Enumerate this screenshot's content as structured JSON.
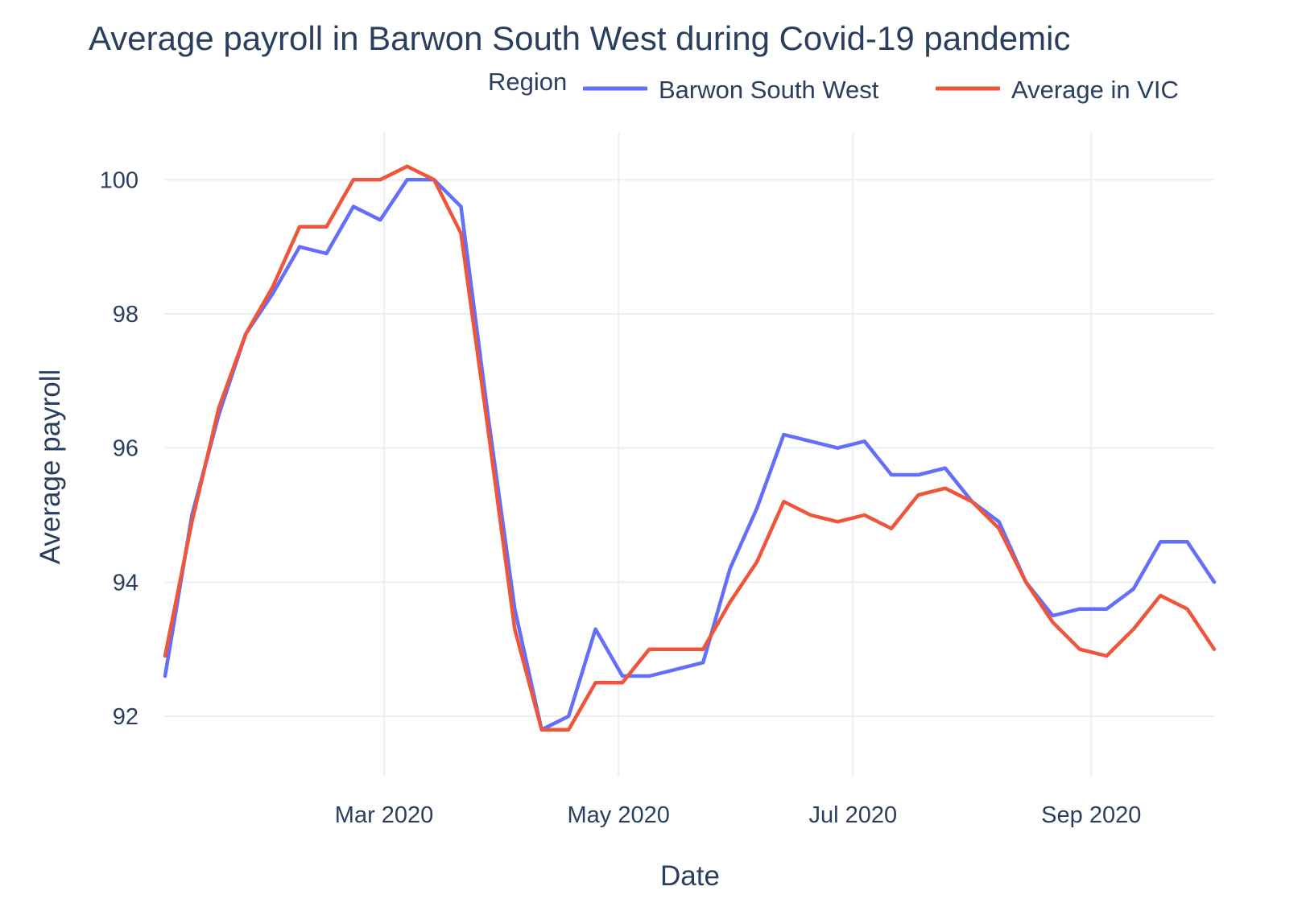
{
  "chart_data": {
    "type": "line",
    "title": "Average payroll in Barwon South West during Covid-19 pandemic",
    "xlabel": "Date",
    "ylabel": "Average payroll",
    "legend": {
      "title": "Region",
      "placement": "top-right"
    },
    "x_ticks": [
      {
        "date": "2020-03-01",
        "label": "Mar 2020"
      },
      {
        "date": "2020-05-01",
        "label": "May 2020"
      },
      {
        "date": "2020-07-01",
        "label": "Jul 2020"
      },
      {
        "date": "2020-09-01",
        "label": "Sep 2020"
      }
    ],
    "y_ticks": [
      92,
      94,
      96,
      98,
      100
    ],
    "xlim": [
      "2020-01-04",
      "2020-10-03"
    ],
    "ylim": [
      91.1,
      100.7
    ],
    "grid": true,
    "x": [
      "2020-01-04",
      "2020-01-11",
      "2020-01-18",
      "2020-01-25",
      "2020-02-01",
      "2020-02-08",
      "2020-02-15",
      "2020-02-22",
      "2020-02-29",
      "2020-03-07",
      "2020-03-14",
      "2020-03-21",
      "2020-03-28",
      "2020-04-04",
      "2020-04-11",
      "2020-04-18",
      "2020-04-25",
      "2020-05-02",
      "2020-05-09",
      "2020-05-16",
      "2020-05-23",
      "2020-05-30",
      "2020-06-06",
      "2020-06-13",
      "2020-06-20",
      "2020-06-27",
      "2020-07-04",
      "2020-07-11",
      "2020-07-18",
      "2020-07-25",
      "2020-08-01",
      "2020-08-08",
      "2020-08-15",
      "2020-08-22",
      "2020-08-29",
      "2020-09-05",
      "2020-09-12",
      "2020-09-19",
      "2020-09-26",
      "2020-10-03"
    ],
    "series": [
      {
        "name": "Barwon South West",
        "color": "#636efa",
        "values": [
          92.6,
          95.0,
          96.5,
          97.7,
          98.3,
          99.0,
          98.9,
          99.6,
          99.4,
          100.0,
          100.0,
          99.6,
          96.5,
          93.6,
          91.8,
          92.0,
          93.3,
          92.6,
          92.6,
          92.7,
          92.8,
          94.2,
          95.1,
          96.2,
          96.1,
          96.0,
          96.1,
          95.6,
          95.6,
          95.7,
          95.2,
          94.9,
          94.0,
          93.5,
          93.6,
          93.6,
          93.9,
          94.6,
          94.6,
          94.0
        ]
      },
      {
        "name": "Average in VIC",
        "color": "#ef553b",
        "values": [
          92.9,
          94.9,
          96.6,
          97.7,
          98.4,
          99.3,
          99.3,
          100.0,
          100.0,
          100.2,
          100.0,
          99.2,
          96.3,
          93.3,
          91.8,
          91.8,
          92.5,
          92.5,
          93.0,
          93.0,
          93.0,
          93.7,
          94.3,
          95.2,
          95.0,
          94.9,
          95.0,
          94.8,
          95.3,
          95.4,
          95.2,
          94.8,
          94.0,
          93.4,
          93.0,
          92.9,
          93.3,
          93.8,
          93.6,
          93.0
        ]
      }
    ]
  }
}
